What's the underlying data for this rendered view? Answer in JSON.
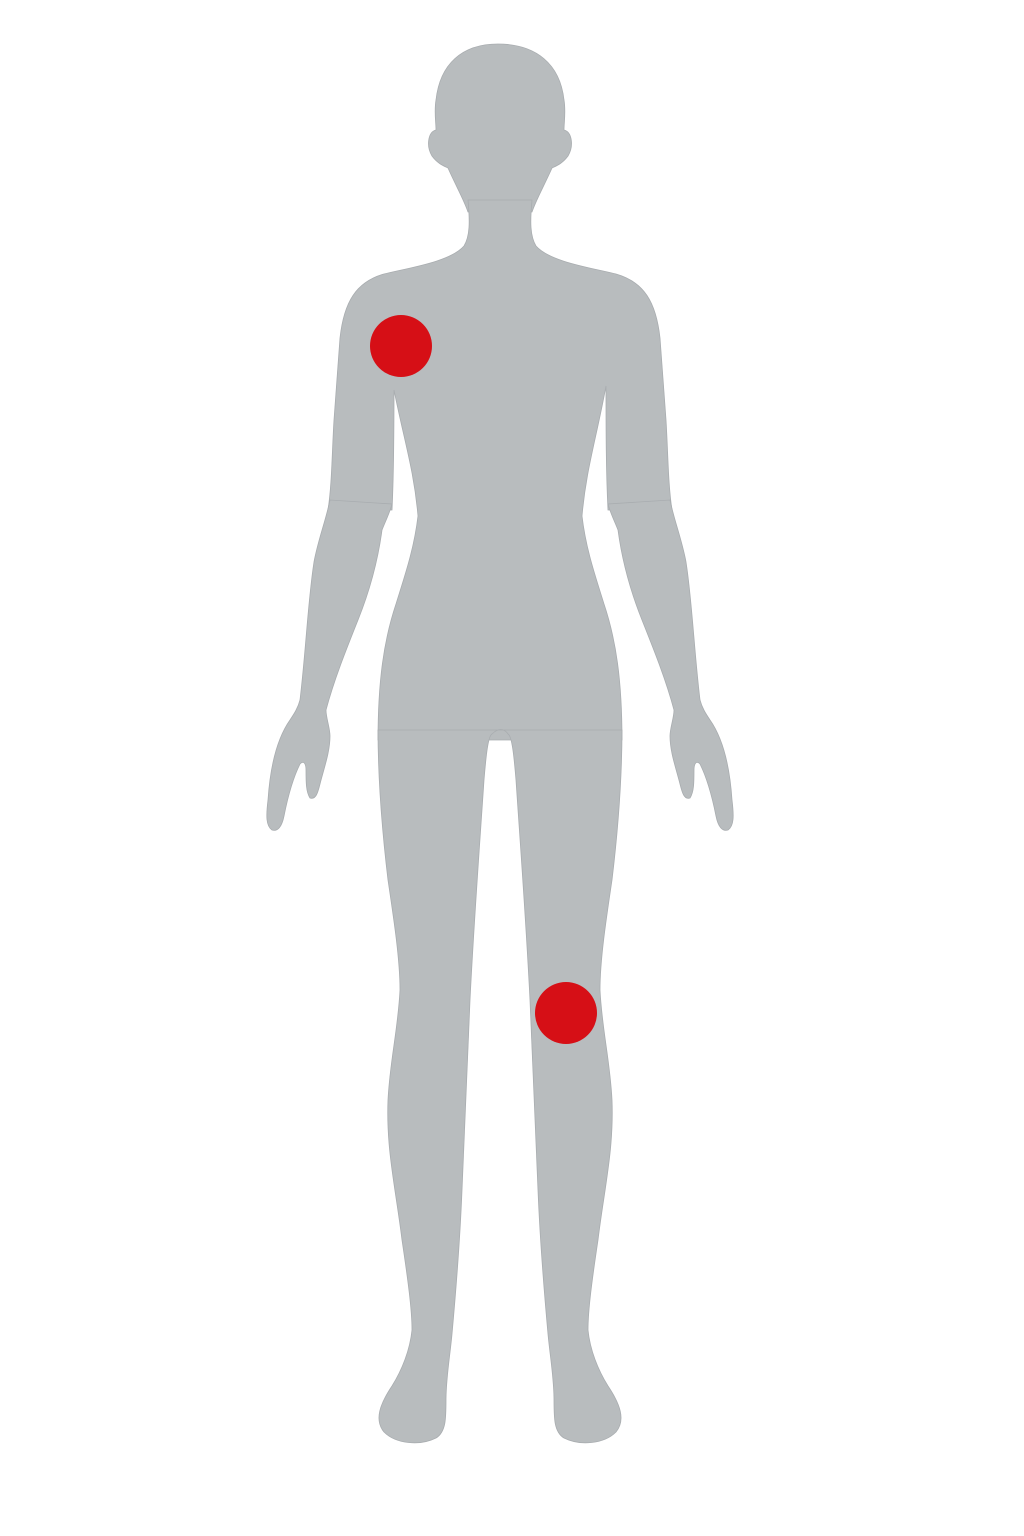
{
  "diagram": {
    "type": "body-map",
    "view": "front",
    "figure": "female-silhouette",
    "colors": {
      "background": "#ffffff",
      "silhouette": "#b8bcbe",
      "silhouette_edge": "#a9adb0",
      "marker": "#d60f16"
    },
    "markers": [
      {
        "id": "marker-right-shoulder",
        "region": "right-shoulder"
      },
      {
        "id": "marker-left-knee",
        "region": "left-knee"
      }
    ]
  }
}
